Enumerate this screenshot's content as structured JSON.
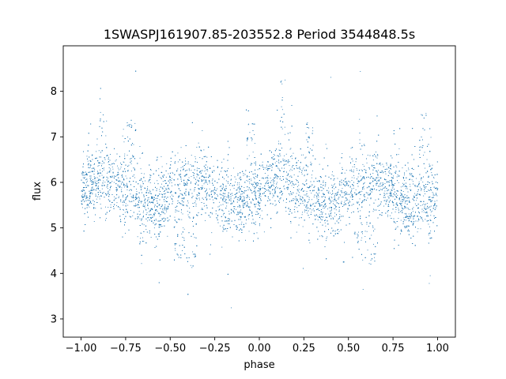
{
  "chart_data": {
    "type": "scatter",
    "title": "1SWASPJ161907.85-203552.8 Period 3544848.5s",
    "xlabel": "phase",
    "ylabel": "flux",
    "xlim": [
      -1.1,
      1.1
    ],
    "ylim": [
      2.6,
      9.0
    ],
    "x_ticks": [
      -1.0,
      -0.75,
      -0.5,
      -0.25,
      0.0,
      0.25,
      0.5,
      0.75,
      1.0
    ],
    "x_tick_labels": [
      "−1.00",
      "−0.75",
      "−0.50",
      "−0.25",
      "0.00",
      "0.25",
      "0.50",
      "0.75",
      "1.00"
    ],
    "y_ticks": [
      3,
      4,
      5,
      6,
      7,
      8
    ],
    "y_tick_labels": [
      "3",
      "4",
      "5",
      "6",
      "7",
      "8"
    ],
    "grid": false,
    "marker_color": "#1f77b4",
    "series": [
      {
        "phase_range": [
          -1.0,
          1.0
        ],
        "point_count": 9000,
        "baseline_flux": 5.8,
        "typical_scatter": 0.35,
        "flux_min": 2.9,
        "flux_max": 8.6,
        "dip_phases": [
          -0.58,
          -0.45,
          -0.38,
          0.42,
          0.55,
          0.62
        ],
        "dip_flux": [
          4.8,
          4.3,
          4.0,
          4.8,
          4.3,
          4.0
        ],
        "peak_phases": [
          -0.88,
          -0.72,
          -0.05,
          0.12,
          0.28,
          0.92
        ],
        "peak_flux": [
          8.1,
          7.4,
          7.6,
          8.3,
          7.3,
          7.6
        ]
      }
    ]
  }
}
